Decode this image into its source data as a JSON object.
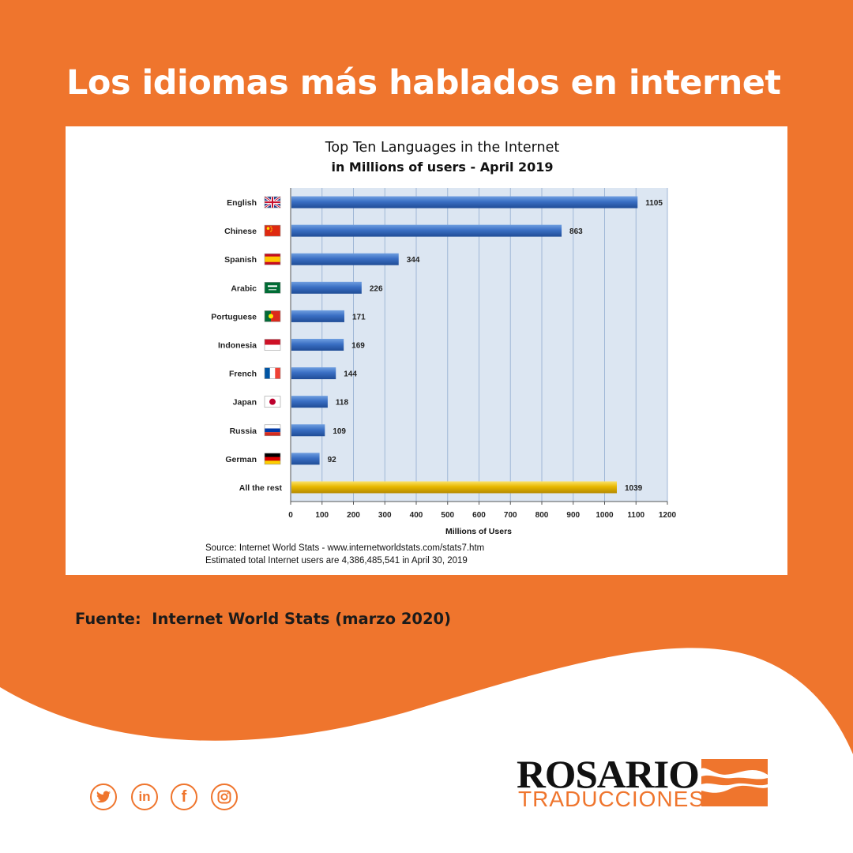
{
  "headline": "Los idiomas más hablados en internet",
  "source_line": "Fuente:  Internet World Stats (marzo 2020)",
  "brand": {
    "line1": "ROSARIO",
    "line2": "TRADUCCIONES",
    "accent": "#ef752d"
  },
  "social_icons": [
    "twitter-icon",
    "linkedin-icon",
    "facebook-icon",
    "instagram-icon"
  ],
  "social_labels": {
    "linkedin": "in",
    "facebook": "f"
  },
  "chart_data": {
    "type": "bar",
    "orientation": "horizontal",
    "title": "Top Ten Languages in the Internet",
    "subtitle": "in Millions of users - April 2019",
    "xlabel": "Millions of Users",
    "ylabel": "",
    "xlim": [
      0,
      1200
    ],
    "xticks": [
      0,
      100,
      200,
      300,
      400,
      500,
      600,
      700,
      800,
      900,
      1000,
      1100,
      1200
    ],
    "categories": [
      "English",
      "Chinese",
      "Spanish",
      "Arabic",
      "Portuguese",
      "Indonesia",
      "French",
      "Japan",
      "Russia",
      "German",
      "All the rest"
    ],
    "values": [
      1105,
      863,
      344,
      226,
      171,
      169,
      144,
      118,
      109,
      92,
      1039
    ],
    "flags": [
      "uk-flag-icon",
      "china-flag-icon",
      "spain-flag-icon",
      "saudi-arabia-flag-icon",
      "portugal-flag-icon",
      "indonesia-flag-icon",
      "france-flag-icon",
      "japan-flag-icon",
      "russia-flag-icon",
      "germany-flag-icon",
      ""
    ],
    "bar_colors": {
      "default": "#3a6fc4",
      "highlight": "#e8b800"
    },
    "plot_background": "#dce6f2",
    "grid": true,
    "notes": [
      "Source: Internet World Stats - www.internetworldstats.com/stats7.htm",
      "Estimated total Internet users are 4,386,485,541 in April 30, 2019"
    ]
  }
}
